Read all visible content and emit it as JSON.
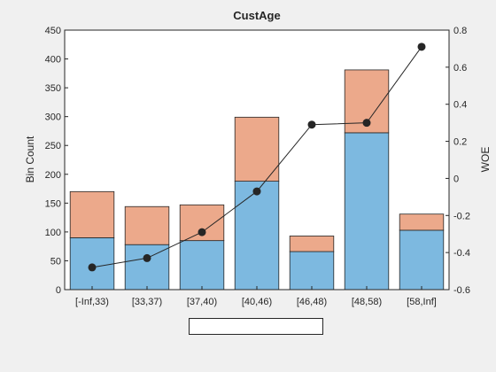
{
  "chart_data": {
    "type": "bar",
    "title": "CustAge",
    "ylabel": "Bin Count",
    "y2label": "WOE",
    "categories": [
      "[-Inf,33)",
      "[33,37)",
      "[37,40)",
      "[40,46)",
      "[46,48)",
      "[48,58)",
      "[58,Inf]"
    ],
    "stacked": true,
    "series": [
      {
        "values": [
          90,
          78,
          85,
          188,
          66,
          272,
          103
        ],
        "color": "#7db9e0"
      },
      {
        "values": [
          80,
          66,
          62,
          111,
          27,
          109,
          28
        ],
        "color": "#eca98b"
      }
    ],
    "line": {
      "axis": "right",
      "values": [
        -0.48,
        -0.43,
        -0.29,
        -0.07,
        0.29,
        0.3,
        0.71
      ],
      "color": "#262626"
    },
    "ylim": [
      0,
      450
    ],
    "y_ticks": [
      "0",
      "50",
      "100",
      "150",
      "200",
      "250",
      "300",
      "350",
      "400",
      "450"
    ],
    "y2lim": [
      -0.6,
      0.8
    ],
    "y2_ticks": [
      "-0.6",
      "-0.4",
      "-0.2",
      "0",
      "0.2",
      "0.4",
      "0.6",
      "0.8"
    ],
    "legend": "bottom, empty box",
    "grid": false
  },
  "colors": {
    "background": "#f0f0f0",
    "plot_area": "#ffffff",
    "axis": "#262626"
  }
}
